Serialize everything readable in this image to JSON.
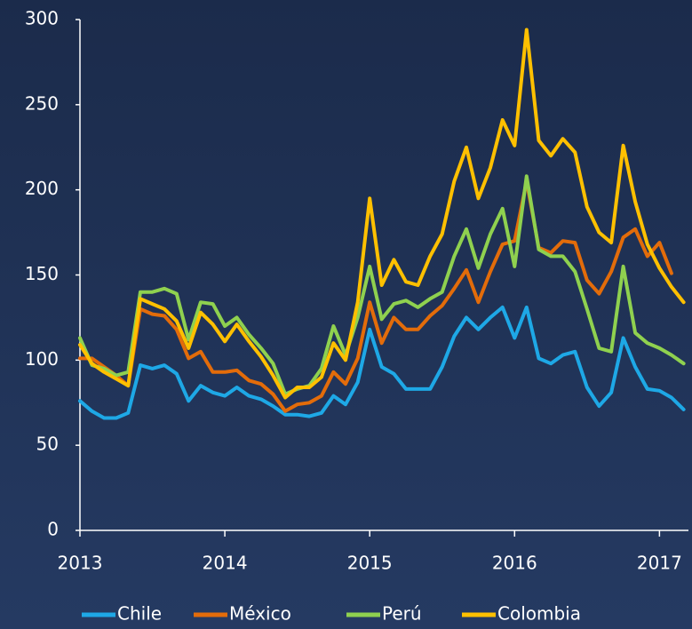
{
  "chart_data": {
    "type": "line",
    "x": [
      2013,
      2013.083,
      2013.167,
      2013.25,
      2013.333,
      2013.417,
      2013.5,
      2013.583,
      2013.667,
      2013.75,
      2013.833,
      2013.917,
      2014,
      2014.083,
      2014.167,
      2014.25,
      2014.333,
      2014.417,
      2014.5,
      2014.583,
      2014.667,
      2014.75,
      2014.833,
      2014.917,
      2015,
      2015.083,
      2015.167,
      2015.25,
      2015.333,
      2015.417,
      2015.5,
      2015.583,
      2015.667,
      2015.75,
      2015.833,
      2015.917,
      2016,
      2016.083,
      2016.167,
      2016.25,
      2016.333,
      2016.417,
      2016.5,
      2016.583,
      2016.667,
      2016.75,
      2016.833,
      2016.917,
      2017,
      2017.083,
      2017.167
    ],
    "series": [
      {
        "name": "Chile",
        "color": "#1ea8e6",
        "values": [
          76,
          70,
          66,
          66,
          69,
          97,
          95,
          97,
          92,
          76,
          85,
          81,
          79,
          84,
          79,
          77,
          73,
          68,
          68,
          67,
          69,
          79,
          74,
          87,
          118,
          96,
          92,
          83,
          83,
          83,
          96,
          114,
          125,
          118,
          125,
          131,
          113,
          131,
          101,
          98,
          103,
          105,
          84,
          73,
          81,
          113,
          96,
          83,
          82,
          78,
          71
        ]
      },
      {
        "name": "México",
        "color": "#e36c0a",
        "values": [
          101,
          101,
          96,
          91,
          85,
          130,
          127,
          126,
          118,
          101,
          105,
          93,
          93,
          94,
          88,
          86,
          80,
          70,
          74,
          75,
          79,
          93,
          86,
          101,
          134,
          110,
          125,
          118,
          118,
          126,
          132,
          142,
          153,
          134,
          152,
          168,
          170,
          205,
          166,
          163,
          170,
          169,
          147,
          139,
          152,
          172,
          177,
          161,
          169,
          151,
          null
        ]
      },
      {
        "name": "Perú",
        "color": "#8fd14f",
        "values": [
          113,
          97,
          95,
          91,
          93,
          140,
          140,
          142,
          139,
          112,
          134,
          133,
          120,
          125,
          115,
          107,
          98,
          80,
          83,
          85,
          95,
          120,
          103,
          125,
          155,
          124,
          133,
          135,
          131,
          136,
          140,
          161,
          177,
          154,
          174,
          189,
          155,
          208,
          165,
          161,
          161,
          152,
          130,
          107,
          105,
          155,
          116,
          110,
          107,
          103,
          98
        ]
      },
      {
        "name": "Colombia",
        "color": "#ffc000",
        "values": [
          109,
          98,
          93,
          89,
          85,
          136,
          133,
          130,
          123,
          107,
          128,
          121,
          111,
          121,
          111,
          102,
          91,
          78,
          84,
          84,
          90,
          110,
          100,
          134,
          195,
          144,
          159,
          146,
          144,
          161,
          174,
          205,
          225,
          195,
          213,
          241,
          226,
          294,
          229,
          220,
          230,
          222,
          190,
          175,
          169,
          226,
          193,
          168,
          154,
          143,
          134
        ]
      }
    ],
    "xlim": [
      2013,
      2017.2
    ],
    "xticks": [
      2013,
      2014,
      2015,
      2016,
      2017
    ],
    "ylim": [
      0,
      300
    ],
    "yticks": [
      0,
      50,
      100,
      150,
      200,
      250,
      300
    ],
    "legend": "bottom"
  }
}
